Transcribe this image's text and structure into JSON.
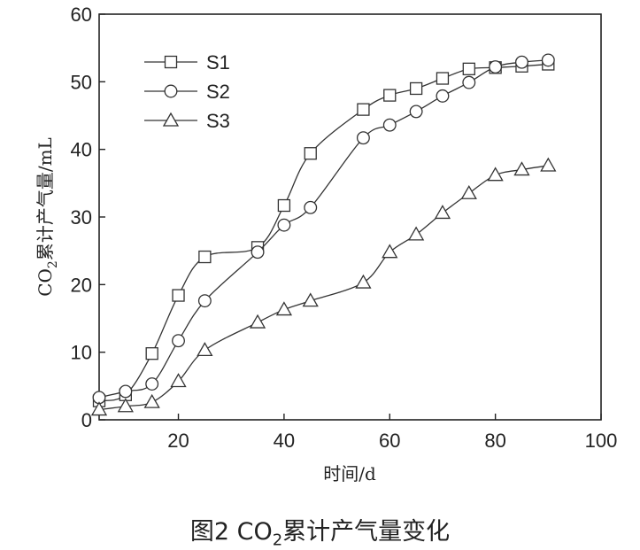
{
  "caption": {
    "prefix": "图2  CO",
    "sub": "2",
    "suffix": "累计产气量变化"
  },
  "chart_data": {
    "type": "line",
    "xlabel": "时间/d",
    "ylabel_prefix": "CO",
    "ylabel_sub": "2",
    "ylabel_suffix": "累计产气量/mL",
    "xlim": [
      5,
      100
    ],
    "ylim": [
      0,
      60
    ],
    "x_ticks": [
      20,
      40,
      60,
      80,
      100
    ],
    "y_ticks": [
      0,
      10,
      20,
      30,
      40,
      50,
      60
    ],
    "legend_position": "top-left",
    "grid": false,
    "series": [
      {
        "name": "S1",
        "marker": "square",
        "x": [
          5,
          10,
          15,
          20,
          25,
          35,
          40,
          45,
          55,
          60,
          65,
          70,
          75,
          80,
          85,
          90
        ],
        "y": [
          2.8,
          3.7,
          9.8,
          18.4,
          24.1,
          25.5,
          31.7,
          39.4,
          45.9,
          48.0,
          49.0,
          50.5,
          51.9,
          52.1,
          52.3,
          52.6
        ]
      },
      {
        "name": "S2",
        "marker": "circle",
        "x": [
          5,
          10,
          15,
          20,
          25,
          35,
          40,
          45,
          55,
          60,
          65,
          70,
          75,
          80,
          85,
          90
        ],
        "y": [
          3.3,
          4.2,
          5.3,
          11.7,
          17.6,
          24.8,
          28.8,
          31.4,
          41.7,
          43.6,
          45.6,
          47.9,
          49.9,
          52.2,
          52.9,
          53.2
        ]
      },
      {
        "name": "S3",
        "marker": "triangle",
        "x": [
          5,
          10,
          15,
          20,
          25,
          35,
          40,
          45,
          55,
          60,
          65,
          70,
          75,
          80,
          85,
          90
        ],
        "y": [
          1.5,
          2.0,
          2.6,
          5.7,
          10.3,
          14.4,
          16.3,
          17.6,
          20.3,
          24.8,
          27.4,
          30.6,
          33.5,
          36.2,
          37.0,
          37.6
        ]
      }
    ]
  }
}
